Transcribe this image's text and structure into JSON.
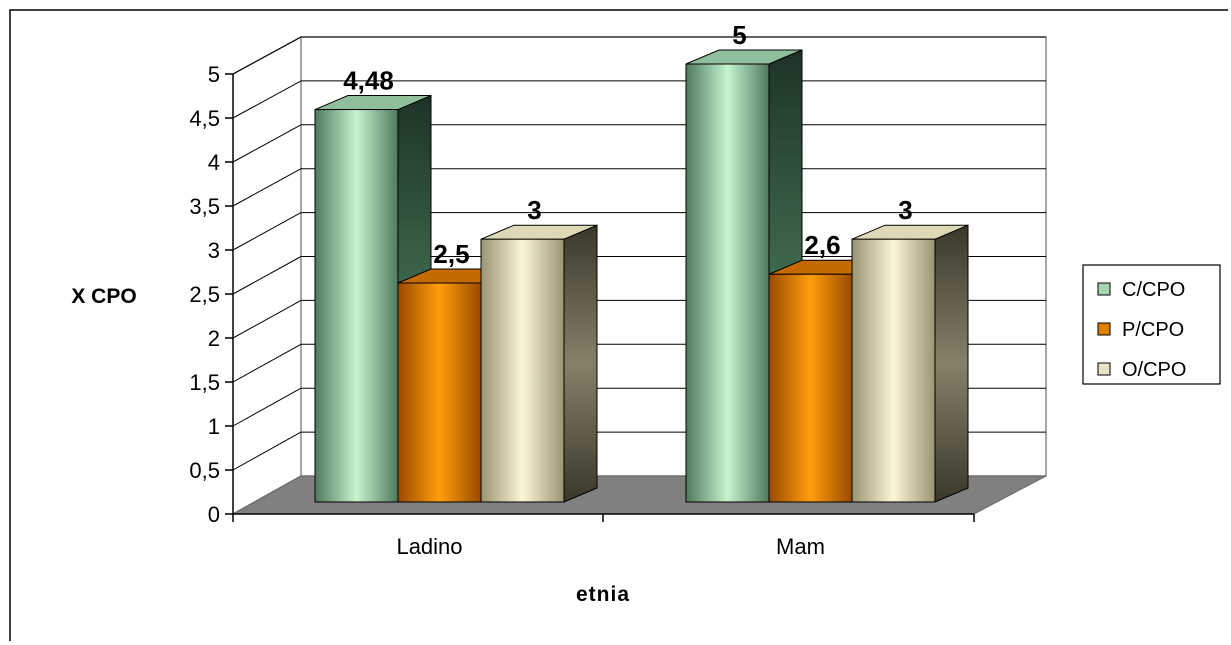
{
  "chart_data": {
    "type": "bar",
    "title": "",
    "xlabel": "etnia",
    "ylabel": "X CPO",
    "categories": [
      "Ladino",
      "Mam"
    ],
    "series": [
      {
        "name": "C/CPO",
        "values": [
          4.48,
          5
        ],
        "labels": [
          "4,48",
          "5"
        ],
        "color": "#7fae8c"
      },
      {
        "name": "P/CPO",
        "values": [
          2.5,
          2.6
        ],
        "labels": [
          "2,5",
          "2,6"
        ],
        "color": "#e07f00"
      },
      {
        "name": "O/CPO",
        "values": [
          3,
          3
        ],
        "labels": [
          "3",
          "3"
        ],
        "color": "#cfc9a3"
      }
    ],
    "ylim": [
      0,
      5
    ],
    "yticks": [
      "0",
      "0,5",
      "1",
      "1,5",
      "2",
      "2,5",
      "3",
      "3,5",
      "4",
      "4,5",
      "5"
    ],
    "grid": true,
    "legend_position": "right",
    "style": "3d"
  }
}
